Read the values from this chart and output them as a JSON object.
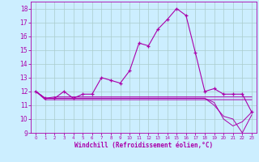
{
  "xlabel": "Windchill (Refroidissement éolien,°C)",
  "background_color": "#cceeff",
  "grid_color": "#aacccc",
  "line_color": "#aa00aa",
  "x_values": [
    0,
    1,
    2,
    3,
    4,
    5,
    6,
    7,
    8,
    9,
    10,
    11,
    12,
    13,
    14,
    15,
    16,
    17,
    18,
    19,
    20,
    21,
    22,
    23
  ],
  "main_line": [
    12.0,
    11.5,
    11.5,
    12.0,
    11.5,
    11.8,
    11.8,
    13.0,
    12.8,
    12.6,
    13.5,
    15.5,
    15.3,
    16.5,
    17.2,
    18.0,
    17.5,
    14.8,
    12.0,
    12.2,
    11.8,
    11.8,
    11.8,
    10.5
  ],
  "flat_line1": [
    12.0,
    11.5,
    11.6,
    11.6,
    11.6,
    11.6,
    11.6,
    11.6,
    11.6,
    11.6,
    11.6,
    11.6,
    11.6,
    11.6,
    11.6,
    11.6,
    11.6,
    11.6,
    11.6,
    11.6,
    11.6,
    11.6,
    11.6,
    11.6
  ],
  "flat_line2": [
    12.0,
    11.4,
    11.4,
    11.4,
    11.4,
    11.4,
    11.4,
    11.4,
    11.4,
    11.4,
    11.4,
    11.4,
    11.4,
    11.4,
    11.4,
    11.4,
    11.4,
    11.4,
    11.4,
    11.4,
    11.4,
    11.4,
    11.4,
    11.4
  ],
  "flat_line3": [
    12.0,
    11.5,
    11.5,
    11.5,
    11.5,
    11.5,
    11.5,
    11.5,
    11.5,
    11.5,
    11.5,
    11.5,
    11.5,
    11.5,
    11.5,
    11.5,
    11.5,
    11.5,
    11.5,
    11.0,
    10.2,
    10.0,
    9.0,
    10.3
  ],
  "flat_line4": [
    12.0,
    11.5,
    11.5,
    11.5,
    11.5,
    11.5,
    11.5,
    11.5,
    11.5,
    11.5,
    11.5,
    11.5,
    11.5,
    11.5,
    11.5,
    11.5,
    11.5,
    11.5,
    11.5,
    11.2,
    10.0,
    9.5,
    9.8,
    10.5
  ],
  "ylim": [
    9,
    18.5
  ],
  "xlim": [
    -0.5,
    23.5
  ],
  "yticks": [
    9,
    10,
    11,
    12,
    13,
    14,
    15,
    16,
    17,
    18
  ],
  "xticks": [
    0,
    1,
    2,
    3,
    4,
    5,
    6,
    7,
    8,
    9,
    10,
    11,
    12,
    13,
    14,
    15,
    16,
    17,
    18,
    19,
    20,
    21,
    22,
    23
  ]
}
